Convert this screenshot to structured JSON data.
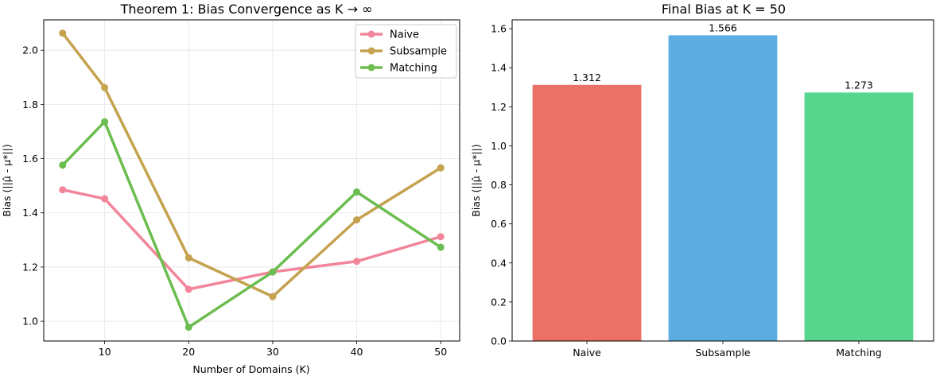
{
  "chart_data": [
    {
      "type": "line",
      "title": "Theorem 1: Bias Convergence as K → ∞",
      "xlabel": "Number of Domains (K)",
      "ylabel": "Bias (||μ̂ - μ*||)",
      "x": [
        5,
        10,
        20,
        30,
        40,
        50
      ],
      "x_ticks": [
        "10",
        "20",
        "30",
        "40",
        "50"
      ],
      "y_ticks": [
        "1.0",
        "1.2",
        "1.4",
        "1.6",
        "1.8",
        "2.0"
      ],
      "xlim": [
        2.75,
        52.25
      ],
      "ylim": [
        0.927,
        2.112
      ],
      "grid": true,
      "legend_position": "top-right",
      "series": [
        {
          "name": "Naive",
          "color": "#f28599",
          "values": [
            1.485,
            1.452,
            1.118,
            1.182,
            1.221,
            1.312
          ]
        },
        {
          "name": "Subsample",
          "color": "#c4a24e",
          "values": [
            2.063,
            1.862,
            1.234,
            1.091,
            1.374,
            1.566
          ]
        },
        {
          "name": "Matching",
          "color": "#6cbd4f",
          "values": [
            1.576,
            1.736,
            0.978,
            1.182,
            1.477,
            1.273
          ]
        }
      ]
    },
    {
      "type": "bar",
      "title": "Final Bias at K = 50",
      "xlabel": "",
      "ylabel": "Bias (||μ̂ - μ*||)",
      "categories": [
        "Naive",
        "Subsample",
        "Matching"
      ],
      "values": [
        1.312,
        1.566,
        1.273
      ],
      "value_labels": [
        "1.312",
        "1.566",
        "1.273"
      ],
      "colors": [
        "#eb7065",
        "#5dade2",
        "#58d68d"
      ],
      "y_ticks": [
        "0.0",
        "0.2",
        "0.4",
        "0.6",
        "0.8",
        "1.0",
        "1.2",
        "1.4",
        "1.6"
      ],
      "ylim": [
        0,
        1.645
      ],
      "grid": false
    }
  ]
}
